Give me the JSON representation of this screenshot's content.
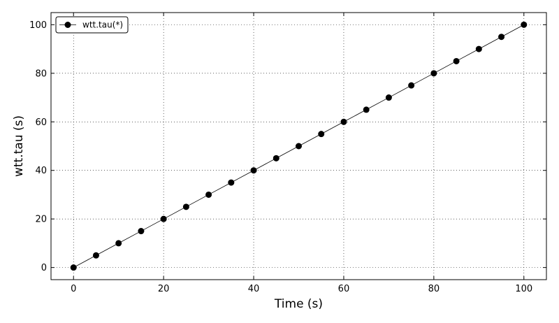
{
  "chart_data": {
    "type": "line",
    "title": "",
    "xlabel": "Time (s)",
    "ylabel": "wtt.tau (s)",
    "xlim": [
      -5,
      105
    ],
    "ylim": [
      -5,
      105
    ],
    "xticks": [
      0,
      20,
      40,
      60,
      80,
      100
    ],
    "yticks": [
      0,
      20,
      40,
      60,
      80,
      100
    ],
    "grid": true,
    "legend_position": "top-left",
    "series": [
      {
        "name": "wtt.tau(*)",
        "color": "#000000",
        "marker": "circle",
        "x": [
          0,
          5,
          10,
          15,
          20,
          25,
          30,
          35,
          40,
          45,
          50,
          55,
          60,
          65,
          70,
          75,
          80,
          85,
          90,
          95,
          100
        ],
        "y": [
          0,
          5,
          10,
          15,
          20,
          25,
          30,
          35,
          40,
          45,
          50,
          55,
          60,
          65,
          70,
          75,
          80,
          85,
          90,
          95,
          100
        ]
      }
    ]
  }
}
